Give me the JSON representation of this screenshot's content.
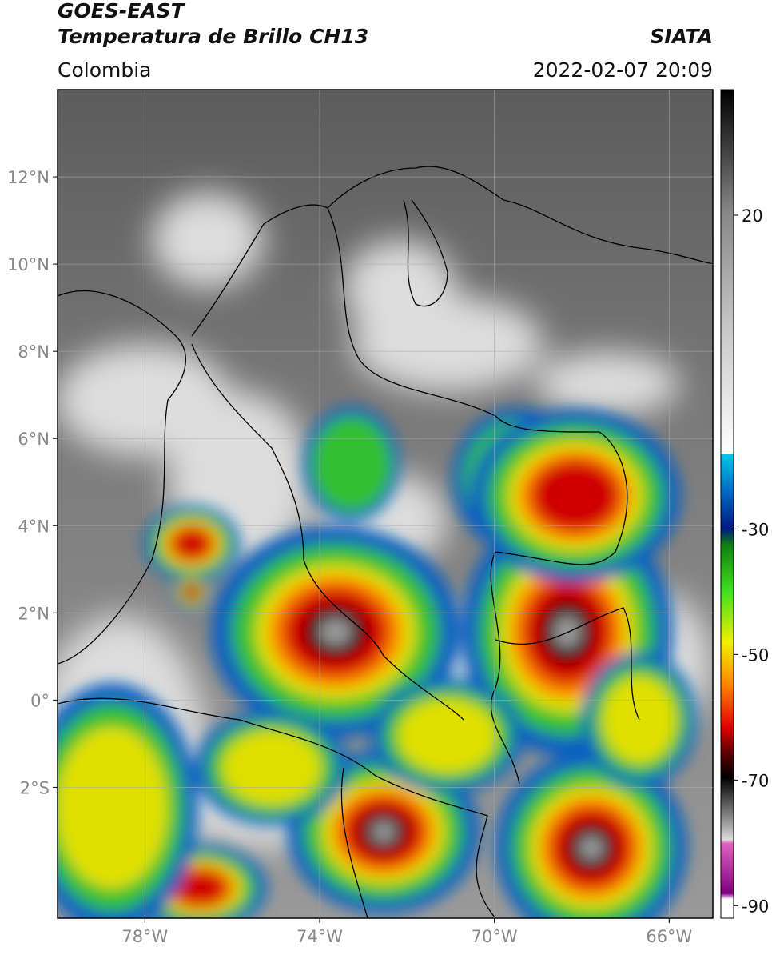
{
  "header": {
    "title": "GOES-EAST",
    "subtitle": "Temperatura de Brillo CH13",
    "region": "Colombia",
    "source": "SIATA",
    "datetime": "2022-02-07 20:09"
  },
  "map": {
    "lon_lim": [
      -80,
      -65
    ],
    "lat_lim": [
      -5,
      14
    ],
    "grid": true,
    "lon_ticks": [
      {
        "value": -78,
        "label": "78°W"
      },
      {
        "value": -74,
        "label": "74°W"
      },
      {
        "value": -70,
        "label": "70°W"
      },
      {
        "value": -66,
        "label": "66°W"
      }
    ],
    "lat_ticks": [
      {
        "value": 12,
        "label": "12°N"
      },
      {
        "value": 10,
        "label": "10°N"
      },
      {
        "value": 8,
        "label": "8°N"
      },
      {
        "value": 6,
        "label": "6°N"
      },
      {
        "value": 4,
        "label": "4°N"
      },
      {
        "value": 2,
        "label": "2°N"
      },
      {
        "value": 0,
        "label": "0°"
      },
      {
        "value": -2,
        "label": "2°S"
      }
    ]
  },
  "colorbar": {
    "lim": [
      -92,
      40
    ],
    "ticks": [
      20,
      -30,
      -50,
      -70,
      -90
    ]
  }
}
